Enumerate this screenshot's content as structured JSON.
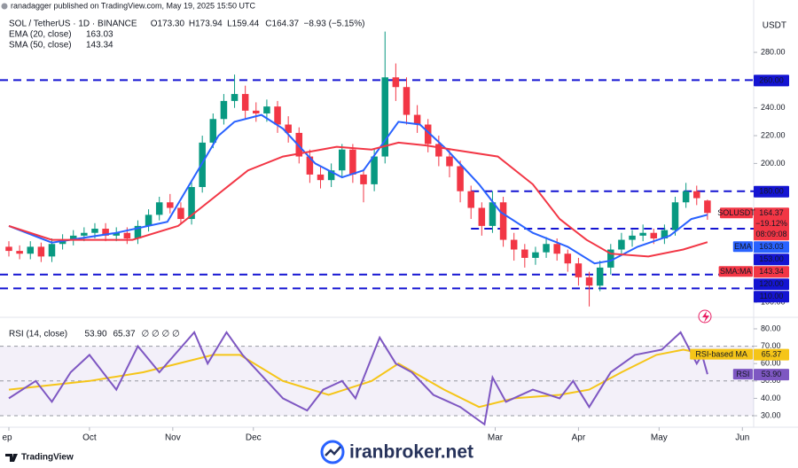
{
  "publisher": "ranadagger published on TradingView.com, May 19, 2025 15:50 UTC",
  "footer": {
    "brand": "TradingView",
    "watermark": "iranbroker.net"
  },
  "chart_data": [
    {
      "type": "candlestick",
      "title": "SOL / TetherUS · 1D · BINANCE",
      "title_values": [
        "O173.30",
        "H173.94",
        "L159.44",
        "C164.37",
        "−8.93 (−5.15%)"
      ],
      "currency": "USDT",
      "up_color": "#089981",
      "down_color": "#f23645",
      "x": [
        0,
        4,
        8,
        12,
        16,
        20,
        24,
        28,
        32,
        36,
        40,
        44,
        48,
        52,
        56,
        60,
        64,
        68,
        72,
        76,
        80,
        84,
        88,
        92,
        96,
        100,
        104,
        108,
        112,
        116,
        120,
        124,
        128,
        132,
        136,
        140,
        144,
        148,
        152,
        156,
        160,
        164,
        168,
        172,
        176,
        180,
        184,
        188,
        192,
        196,
        200,
        204,
        208,
        212,
        216,
        220,
        224,
        228,
        232,
        236,
        240,
        244,
        248,
        252,
        256,
        260
      ],
      "open": [
        140,
        137,
        135,
        140,
        133,
        142,
        145,
        148,
        150,
        153,
        148,
        150,
        146,
        155,
        163,
        172,
        168,
        160,
        183,
        215,
        232,
        245,
        250,
        238,
        236,
        241,
        228,
        222,
        205,
        192,
        188,
        195,
        210,
        192,
        185,
        205,
        262,
        255,
        235,
        228,
        214,
        205,
        198,
        180,
        168,
        155,
        172,
        145,
        138,
        132,
        136,
        142,
        135,
        128,
        118,
        112,
        125,
        138,
        145,
        148,
        150,
        146,
        152,
        172,
        180,
        173.3
      ],
      "high": [
        144,
        141,
        144,
        143,
        146,
        149,
        152,
        154,
        157,
        157,
        154,
        154,
        159,
        167,
        176,
        178,
        172,
        187,
        220,
        236,
        250,
        264,
        256,
        244,
        246,
        245,
        234,
        226,
        210,
        198,
        200,
        214,
        214,
        196,
        210,
        295,
        272,
        262,
        242,
        232,
        220,
        210,
        202,
        184,
        172,
        180,
        176,
        150,
        142,
        140,
        147,
        146,
        138,
        132,
        122,
        130,
        142,
        150,
        152,
        156,
        153,
        156,
        176,
        186,
        184,
        173.94
      ],
      "low": [
        133,
        131,
        131,
        129,
        129,
        138,
        141,
        144,
        146,
        144,
        144,
        142,
        142,
        151,
        159,
        164,
        156,
        156,
        179,
        211,
        228,
        240,
        232,
        230,
        230,
        222,
        215,
        200,
        186,
        182,
        183,
        190,
        186,
        172,
        180,
        200,
        245,
        228,
        222,
        208,
        198,
        190,
        172,
        160,
        148,
        150,
        140,
        130,
        125,
        127,
        132,
        130,
        122,
        112,
        97,
        108,
        120,
        134,
        140,
        144,
        142,
        142,
        148,
        168,
        170,
        159.44
      ],
      "close": [
        137,
        135,
        140,
        133,
        142,
        145,
        148,
        150,
        153,
        148,
        150,
        146,
        155,
        163,
        172,
        168,
        160,
        183,
        215,
        232,
        245,
        250,
        238,
        236,
        241,
        228,
        222,
        205,
        192,
        188,
        195,
        210,
        192,
        185,
        205,
        262,
        255,
        235,
        228,
        214,
        205,
        198,
        180,
        168,
        155,
        172,
        145,
        138,
        132,
        136,
        142,
        135,
        128,
        118,
        112,
        125,
        138,
        145,
        148,
        150,
        146,
        152,
        172,
        180,
        175,
        164.37
      ],
      "last_label": {
        "name": "SOLUSDT",
        "value": "164.37",
        "change": "−19.12%",
        "countdown": "08:09:08"
      },
      "series": [
        {
          "name": "EMA (20, close)",
          "axis_tag": "EMA",
          "value_label": "163.03",
          "color": "#2962ff",
          "x": [
            0,
            16,
            40,
            59,
            78,
            84,
            94,
            102,
            114,
            124,
            132,
            145,
            153,
            163,
            175,
            183,
            195,
            208,
            218,
            224,
            234,
            246,
            254,
            260
          ],
          "values": [
            155,
            143,
            150,
            158,
            220,
            230,
            235,
            225,
            200,
            190,
            195,
            230,
            228,
            210,
            185,
            165,
            150,
            140,
            128,
            130,
            140,
            148,
            160,
            163.03
          ]
        },
        {
          "name": "SMA (50, close)",
          "axis_tag": "SMA:MA",
          "value_label": "143.34",
          "color": "#f23645",
          "x": [
            0,
            16,
            46,
            63,
            76,
            89,
            102,
            122,
            135,
            145,
            155,
            165,
            182,
            195,
            205,
            215,
            224,
            238,
            251,
            260
          ],
          "values": [
            155,
            145,
            145,
            155,
            175,
            195,
            205,
            212,
            210,
            215,
            213,
            210,
            205,
            185,
            160,
            145,
            135,
            133,
            138,
            143.34
          ]
        }
      ],
      "levels_color": "#1414d2",
      "levels": [
        {
          "value": 260,
          "label": "260.00"
        },
        {
          "value": 180,
          "label": "180.00"
        },
        {
          "value": 153,
          "label": "153.00"
        },
        {
          "value": 120,
          "label": "120.00"
        },
        {
          "value": 110,
          "label": "110.00"
        }
      ],
      "xlim": [
        -3.3,
        277.2
      ],
      "xticks": [
        {
          "value": 0,
          "label": "ep"
        },
        {
          "value": 30,
          "label": "Oct"
        },
        {
          "value": 61,
          "label": "Nov"
        },
        {
          "value": 91,
          "label": "Dec"
        },
        {
          "value": 181,
          "label": "Mar"
        },
        {
          "value": 212,
          "label": "Apr"
        },
        {
          "value": 242,
          "label": "May"
        },
        {
          "value": 273,
          "label": "Jun"
        }
      ],
      "ylim": [
        91.1,
        317.7
      ],
      "yticks": [
        {
          "value": 280,
          "label": "280.00"
        },
        {
          "value": 240,
          "label": "240.00"
        },
        {
          "value": 220,
          "label": "220.00"
        },
        {
          "value": 200,
          "label": "200.00"
        },
        {
          "value": 100,
          "label": "100.00"
        }
      ]
    },
    {
      "type": "line",
      "title": "RSI (14, close)",
      "title_values": [
        "53.90",
        "65.37",
        "∅ ∅ ∅ ∅"
      ],
      "series": [
        {
          "name": "RSI",
          "axis_tag": "RSI",
          "value_label": "53.90",
          "color": "#7e57c2",
          "x": [
            0,
            10,
            16,
            23,
            30,
            40,
            48,
            56,
            69,
            74,
            81,
            87,
            96,
            102,
            111,
            117,
            124,
            129,
            138,
            144,
            150,
            158,
            168,
            177,
            180,
            185,
            195,
            205,
            210,
            216,
            224,
            233,
            243,
            250,
            256,
            258,
            260
          ],
          "values": [
            40,
            50,
            38,
            55,
            65,
            45,
            70,
            55,
            78,
            60,
            78,
            65,
            50,
            40,
            33,
            45,
            50,
            40,
            75,
            60,
            55,
            42,
            35,
            25,
            52,
            38,
            45,
            40,
            50,
            35,
            55,
            65,
            68,
            78,
            60,
            65,
            53.9
          ]
        },
        {
          "name": "RSI-based MA",
          "axis_tag": "RSI-based MA",
          "value_label": "65.37",
          "color": "#f5c518",
          "x": [
            0,
            30,
            50,
            76,
            86,
            102,
            119,
            135,
            145,
            162,
            175,
            188,
            205,
            216,
            228,
            241,
            251,
            260
          ],
          "values": [
            45,
            50,
            55,
            65,
            65,
            50,
            42,
            50,
            60,
            45,
            35,
            40,
            42,
            45,
            55,
            65,
            68,
            65.37
          ]
        }
      ],
      "band": [
        30,
        70
      ],
      "midline": 50,
      "xlim": [
        -3.3,
        277.2
      ],
      "ylim": [
        24.4,
        85.6
      ],
      "yticks": [
        {
          "value": 80,
          "label": "80.00"
        },
        {
          "value": 70,
          "label": "70.00"
        },
        {
          "value": 60,
          "label": "60.00"
        },
        {
          "value": 50,
          "label": "50.00"
        },
        {
          "value": 40,
          "label": "40.00"
        },
        {
          "value": 30,
          "label": "30.00"
        }
      ]
    }
  ]
}
